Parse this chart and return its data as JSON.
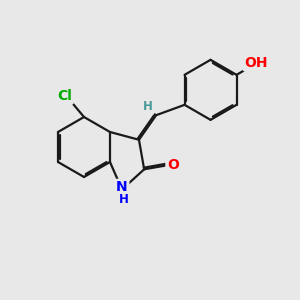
{
  "background_color": "#e8e8e8",
  "bond_color": "#1a1a1a",
  "bond_width": 1.6,
  "dbo": 0.055,
  "atom_colors": {
    "N": "#0000ff",
    "O": "#ff0000",
    "Cl": "#00aa00",
    "H": "#4a9a9a"
  },
  "font_size_main": 10,
  "font_size_small": 8.5
}
